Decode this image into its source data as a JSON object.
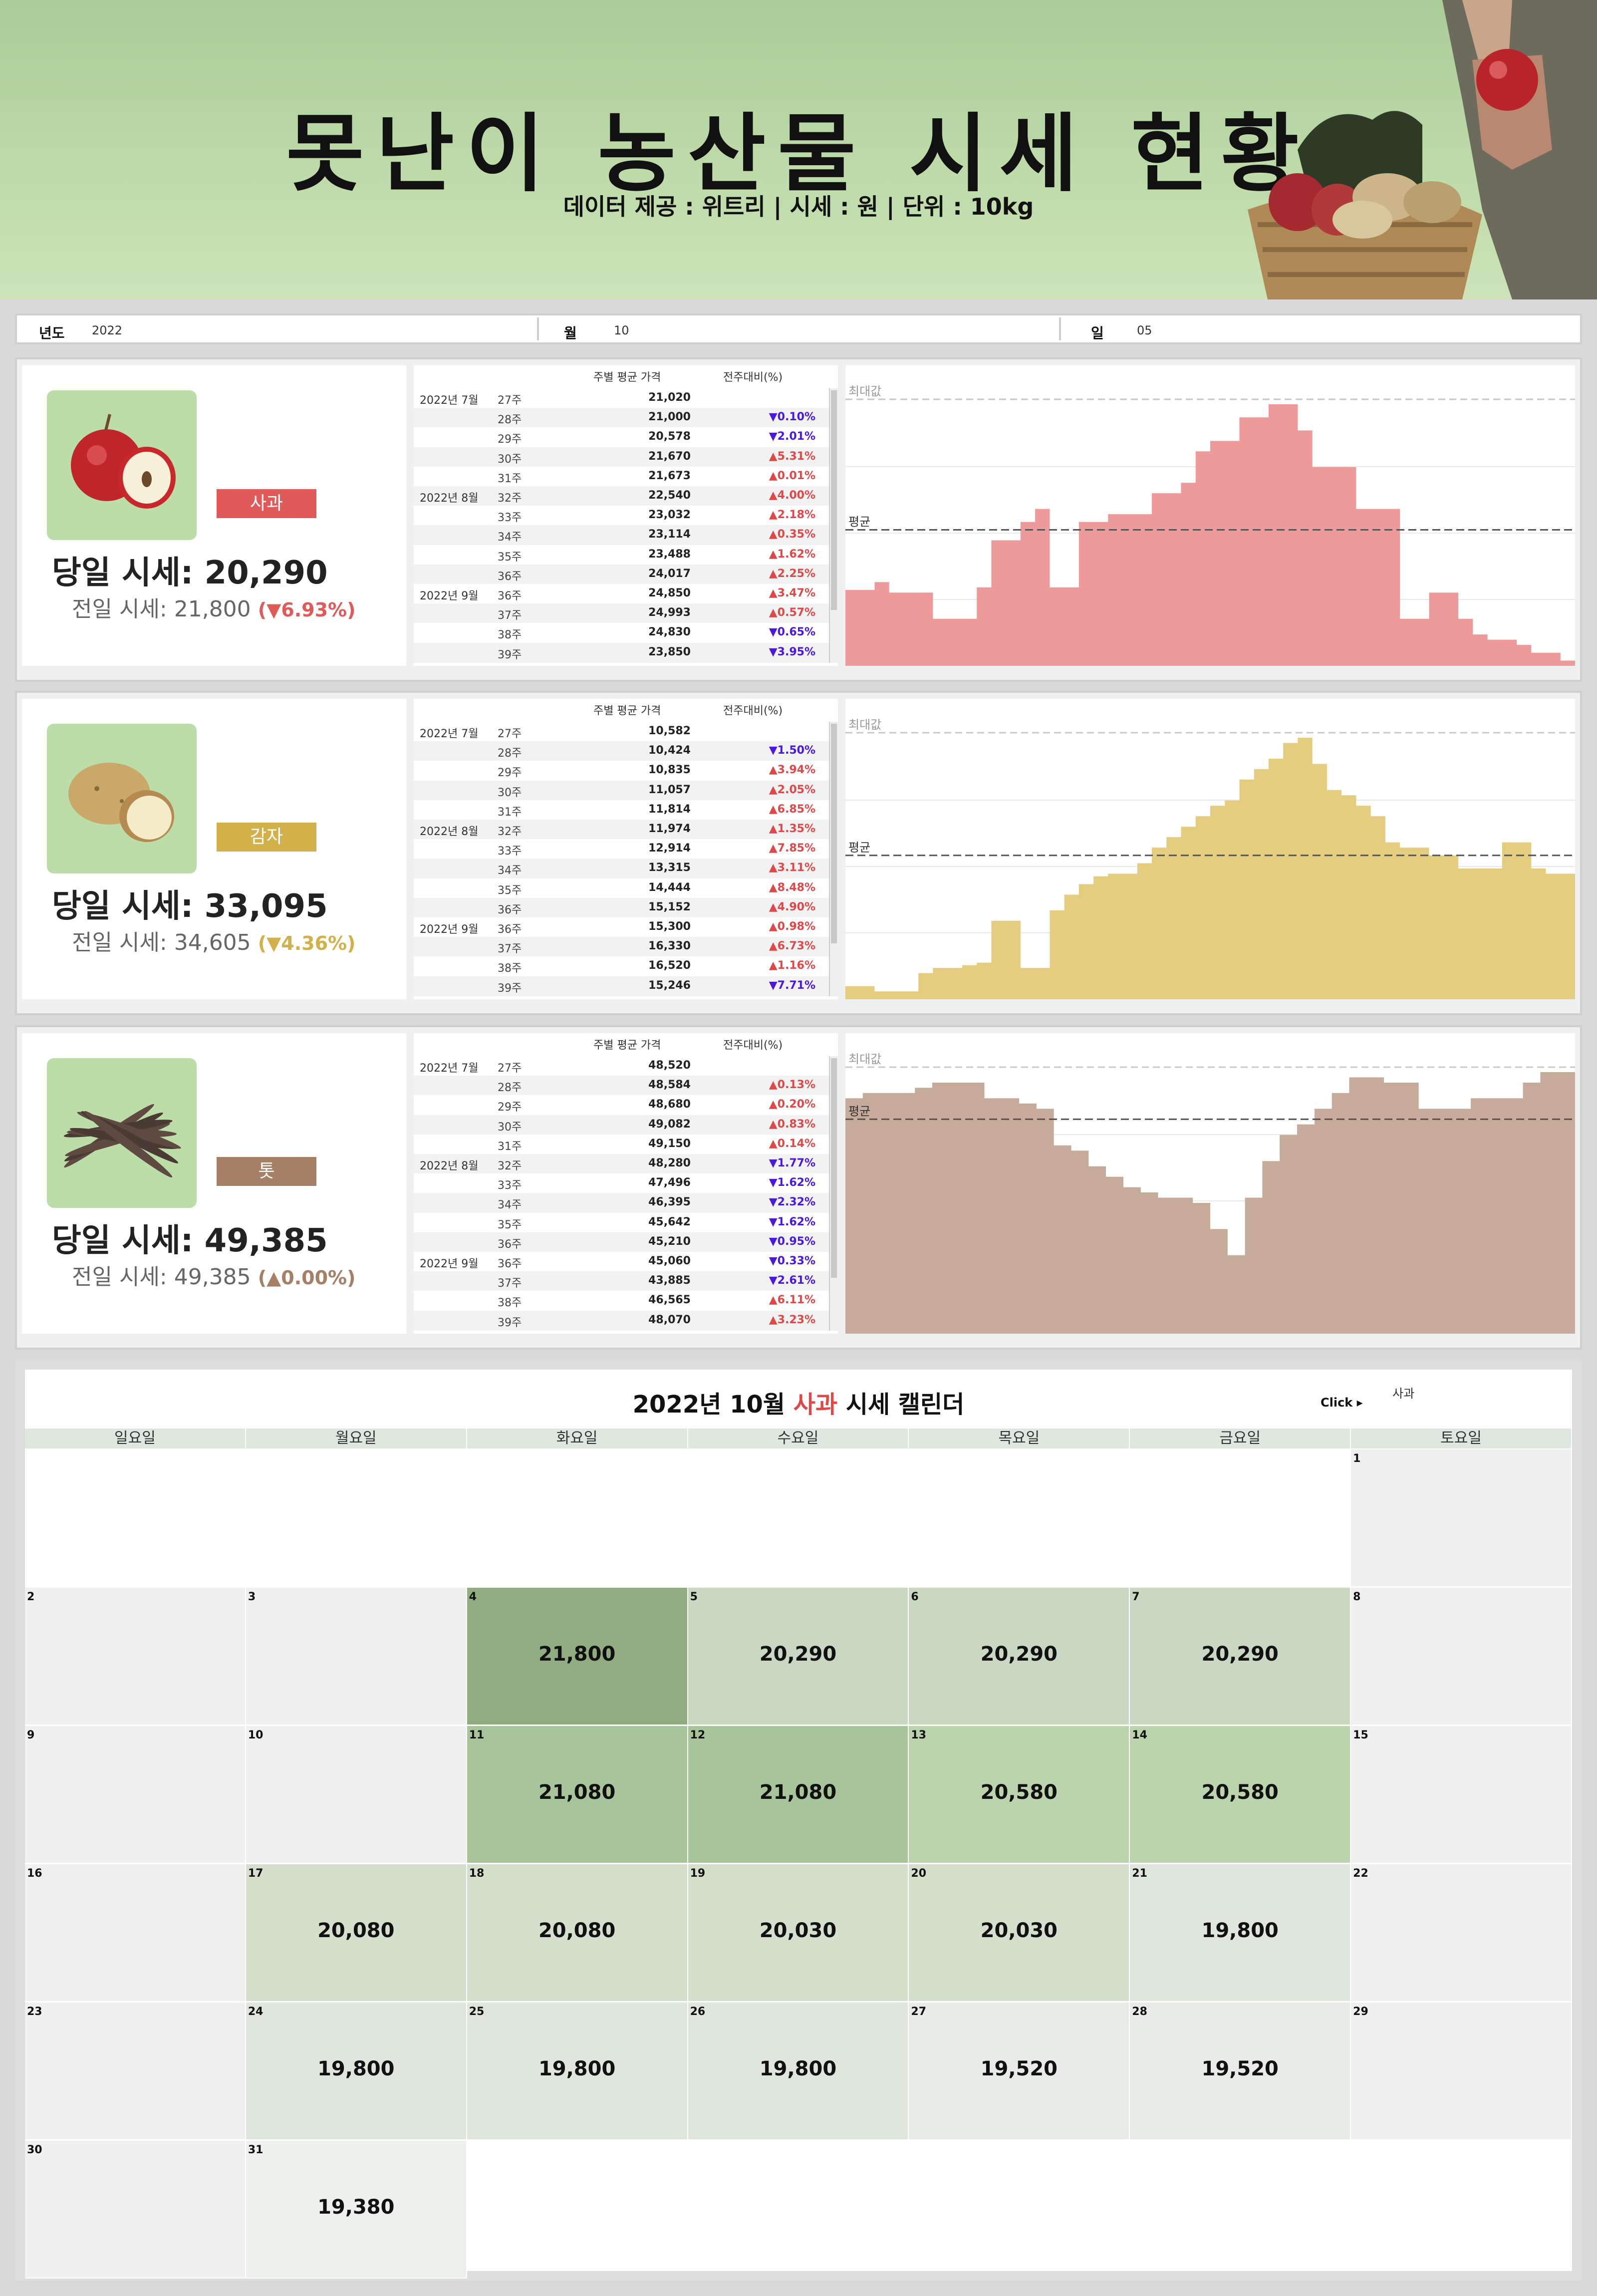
{
  "banner": {
    "title": "못난이 농산물 시세 현황",
    "subtitle": "데이터 제공 : 위트리 | 시세 : 원 | 단위 : 10kg"
  },
  "filters": [
    {
      "label": "년도",
      "value": "2022"
    },
    {
      "label": "월",
      "value": "10"
    },
    {
      "label": "일",
      "value": "05"
    }
  ],
  "table_header": {
    "avg": "주별 평균 가격",
    "wow": "전주대비(%)"
  },
  "chart_labels": {
    "max": "최대값",
    "avg": "평균"
  },
  "products": [
    {
      "name": "사과",
      "icon": "apple-icon",
      "color": "#e05a5a",
      "fill": "#ec9a9a",
      "today_label": "당일 시세: 20,290",
      "prev_label": "전일 시세: 21,800",
      "change": "▼6.93%",
      "change_color": "#e05a5a",
      "weeks": [
        {
          "m": "2022년 7월",
          "w": "27주",
          "p": "21,020",
          "c": ""
        },
        {
          "m": "",
          "w": "28주",
          "p": "21,000",
          "c": "▼0.10%"
        },
        {
          "m": "",
          "w": "29주",
          "p": "20,578",
          "c": "▼2.01%"
        },
        {
          "m": "",
          "w": "30주",
          "p": "21,670",
          "c": "▲5.31%"
        },
        {
          "m": "",
          "w": "31주",
          "p": "21,673",
          "c": "▲0.01%"
        },
        {
          "m": "2022년 8월",
          "w": "32주",
          "p": "22,540",
          "c": "▲4.00%"
        },
        {
          "m": "",
          "w": "33주",
          "p": "23,032",
          "c": "▲2.18%"
        },
        {
          "m": "",
          "w": "34주",
          "p": "23,114",
          "c": "▲0.35%"
        },
        {
          "m": "",
          "w": "35주",
          "p": "23,488",
          "c": "▲1.62%"
        },
        {
          "m": "",
          "w": "36주",
          "p": "24,017",
          "c": "▲2.25%"
        },
        {
          "m": "2022년 9월",
          "w": "36주",
          "p": "24,850",
          "c": "▲3.47%"
        },
        {
          "m": "",
          "w": "37주",
          "p": "24,993",
          "c": "▲0.57%"
        },
        {
          "m": "",
          "w": "38주",
          "p": "24,830",
          "c": "▼0.65%"
        },
        {
          "m": "",
          "w": "39주",
          "p": "23,850",
          "c": "▼3.95%"
        }
      ],
      "trend": [
        0.29,
        0.29,
        0.32,
        0.28,
        0.28,
        0.28,
        0.18,
        0.18,
        0.18,
        0.3,
        0.48,
        0.48,
        0.55,
        0.6,
        0.3,
        0.3,
        0.55,
        0.55,
        0.58,
        0.58,
        0.58,
        0.66,
        0.66,
        0.7,
        0.82,
        0.86,
        0.86,
        0.95,
        0.95,
        1.0,
        1.0,
        0.9,
        0.76,
        0.76,
        0.76,
        0.6,
        0.6,
        0.6,
        0.18,
        0.18,
        0.28,
        0.28,
        0.18,
        0.12,
        0.1,
        0.1,
        0.08,
        0.05,
        0.05,
        0.02
      ],
      "avg_level": 0.52
    },
    {
      "name": "감자",
      "icon": "potato-icon",
      "color": "#d2b14a",
      "fill": "#e5cd80",
      "today_label": "당일 시세: 33,095",
      "prev_label": "전일 시세: 34,605",
      "change": "▼4.36%",
      "change_color": "#d2b14a",
      "weeks": [
        {
          "m": "2022년 7월",
          "w": "27주",
          "p": "10,582",
          "c": ""
        },
        {
          "m": "",
          "w": "28주",
          "p": "10,424",
          "c": "▼1.50%"
        },
        {
          "m": "",
          "w": "29주",
          "p": "10,835",
          "c": "▲3.94%"
        },
        {
          "m": "",
          "w": "30주",
          "p": "11,057",
          "c": "▲2.05%"
        },
        {
          "m": "",
          "w": "31주",
          "p": "11,814",
          "c": "▲6.85%"
        },
        {
          "m": "2022년 8월",
          "w": "32주",
          "p": "11,974",
          "c": "▲1.35%"
        },
        {
          "m": "",
          "w": "33주",
          "p": "12,914",
          "c": "▲7.85%"
        },
        {
          "m": "",
          "w": "34주",
          "p": "13,315",
          "c": "▲3.11%"
        },
        {
          "m": "",
          "w": "35주",
          "p": "14,444",
          "c": "▲8.48%"
        },
        {
          "m": "",
          "w": "36주",
          "p": "15,152",
          "c": "▲4.90%"
        },
        {
          "m": "2022년 9월",
          "w": "36주",
          "p": "15,300",
          "c": "▲0.98%"
        },
        {
          "m": "",
          "w": "37주",
          "p": "16,330",
          "c": "▲6.73%"
        },
        {
          "m": "",
          "w": "38주",
          "p": "16,520",
          "c": "▲1.16%"
        },
        {
          "m": "",
          "w": "39주",
          "p": "15,246",
          "c": "▼7.71%"
        }
      ],
      "trend": [
        0.05,
        0.05,
        0.03,
        0.03,
        0.03,
        0.1,
        0.12,
        0.12,
        0.13,
        0.14,
        0.3,
        0.3,
        0.12,
        0.12,
        0.34,
        0.4,
        0.44,
        0.47,
        0.48,
        0.48,
        0.52,
        0.58,
        0.62,
        0.66,
        0.7,
        0.74,
        0.76,
        0.84,
        0.88,
        0.92,
        0.98,
        1.0,
        0.9,
        0.8,
        0.78,
        0.74,
        0.7,
        0.6,
        0.58,
        0.58,
        0.55,
        0.55,
        0.5,
        0.5,
        0.5,
        0.6,
        0.6,
        0.5,
        0.48,
        0.48
      ],
      "avg_level": 0.55
    },
    {
      "name": "톳",
      "icon": "seaweed-icon",
      "color": "#a58066",
      "fill": "#c6aa9a",
      "today_label": "당일 시세: 49,385",
      "prev_label": "전일 시세: 49,385",
      "change": "▲0.00%",
      "change_color": "#a58066",
      "weeks": [
        {
          "m": "2022년 7월",
          "w": "27주",
          "p": "48,520",
          "c": ""
        },
        {
          "m": "",
          "w": "28주",
          "p": "48,584",
          "c": "▲0.13%"
        },
        {
          "m": "",
          "w": "29주",
          "p": "48,680",
          "c": "▲0.20%"
        },
        {
          "m": "",
          "w": "30주",
          "p": "49,082",
          "c": "▲0.83%"
        },
        {
          "m": "",
          "w": "31주",
          "p": "49,150",
          "c": "▲0.14%"
        },
        {
          "m": "2022년 8월",
          "w": "32주",
          "p": "48,280",
          "c": "▼1.77%"
        },
        {
          "m": "",
          "w": "33주",
          "p": "47,496",
          "c": "▼1.62%"
        },
        {
          "m": "",
          "w": "34주",
          "p": "46,395",
          "c": "▼2.32%"
        },
        {
          "m": "",
          "w": "35주",
          "p": "45,642",
          "c": "▼1.62%"
        },
        {
          "m": "",
          "w": "36주",
          "p": "45,210",
          "c": "▼0.95%"
        },
        {
          "m": "2022년 9월",
          "w": "36주",
          "p": "45,060",
          "c": "▼0.33%"
        },
        {
          "m": "",
          "w": "37주",
          "p": "43,885",
          "c": "▼2.61%"
        },
        {
          "m": "",
          "w": "38주",
          "p": "46,565",
          "c": "▲6.11%"
        },
        {
          "m": "",
          "w": "39주",
          "p": "48,070",
          "c": "▲3.23%"
        }
      ],
      "trend": [
        0.9,
        0.92,
        0.92,
        0.92,
        0.94,
        0.96,
        0.96,
        0.96,
        0.9,
        0.9,
        0.88,
        0.86,
        0.72,
        0.7,
        0.64,
        0.6,
        0.56,
        0.54,
        0.52,
        0.52,
        0.5,
        0.4,
        0.3,
        0.52,
        0.66,
        0.76,
        0.8,
        0.86,
        0.92,
        0.98,
        0.98,
        0.96,
        0.96,
        0.86,
        0.86,
        0.86,
        0.9,
        0.9,
        0.9,
        0.96,
        1.0,
        1.0
      ],
      "avg_level": 0.82
    }
  ],
  "calendar": {
    "title_prefix": "2022년 10월",
    "title_item": "사과",
    "title_suffix": "시세 캘린더",
    "click_label": "Click ▸",
    "selected_item": "사과",
    "weekdays": [
      "일요일",
      "월요일",
      "화요일",
      "수요일",
      "목요일",
      "금요일",
      "토요일"
    ],
    "days": [
      {
        "d": "1",
        "v": "",
        "wd": 6,
        "row": 0
      },
      {
        "d": "2",
        "v": "",
        "wd": 0,
        "row": 1
      },
      {
        "d": "3",
        "v": "",
        "wd": 1,
        "row": 1
      },
      {
        "d": "4",
        "v": "21,800",
        "wd": 2,
        "row": 1
      },
      {
        "d": "5",
        "v": "20,290",
        "wd": 3,
        "row": 1
      },
      {
        "d": "6",
        "v": "20,290",
        "wd": 4,
        "row": 1
      },
      {
        "d": "7",
        "v": "20,290",
        "wd": 5,
        "row": 1
      },
      {
        "d": "8",
        "v": "",
        "wd": 6,
        "row": 1
      },
      {
        "d": "9",
        "v": "",
        "wd": 0,
        "row": 2
      },
      {
        "d": "10",
        "v": "",
        "wd": 1,
        "row": 2
      },
      {
        "d": "11",
        "v": "21,080",
        "wd": 2,
        "row": 2
      },
      {
        "d": "12",
        "v": "21,080",
        "wd": 3,
        "row": 2
      },
      {
        "d": "13",
        "v": "20,580",
        "wd": 4,
        "row": 2
      },
      {
        "d": "14",
        "v": "20,580",
        "wd": 5,
        "row": 2
      },
      {
        "d": "15",
        "v": "",
        "wd": 6,
        "row": 2
      },
      {
        "d": "16",
        "v": "",
        "wd": 0,
        "row": 3
      },
      {
        "d": "17",
        "v": "20,080",
        "wd": 1,
        "row": 3
      },
      {
        "d": "18",
        "v": "20,080",
        "wd": 2,
        "row": 3
      },
      {
        "d": "19",
        "v": "20,030",
        "wd": 3,
        "row": 3
      },
      {
        "d": "20",
        "v": "20,030",
        "wd": 4,
        "row": 3
      },
      {
        "d": "21",
        "v": "19,800",
        "wd": 5,
        "row": 3
      },
      {
        "d": "22",
        "v": "",
        "wd": 6,
        "row": 3
      },
      {
        "d": "23",
        "v": "",
        "wd": 0,
        "row": 4
      },
      {
        "d": "24",
        "v": "19,800",
        "wd": 1,
        "row": 4
      },
      {
        "d": "25",
        "v": "19,800",
        "wd": 2,
        "row": 4
      },
      {
        "d": "26",
        "v": "19,800",
        "wd": 3,
        "row": 4
      },
      {
        "d": "27",
        "v": "19,520",
        "wd": 4,
        "row": 4
      },
      {
        "d": "28",
        "v": "19,520",
        "wd": 5,
        "row": 4
      },
      {
        "d": "29",
        "v": "",
        "wd": 6,
        "row": 4
      },
      {
        "d": "30",
        "v": "",
        "wd": 0,
        "row": 5
      },
      {
        "d": "31",
        "v": "19,380",
        "wd": 1,
        "row": 5
      }
    ]
  }
}
